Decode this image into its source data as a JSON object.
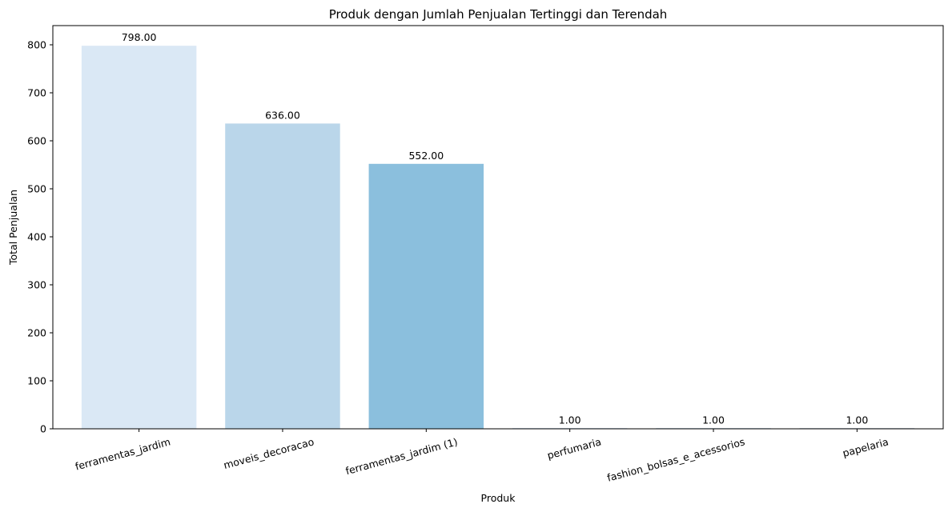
{
  "chart_data": {
    "type": "bar",
    "title": "Produk dengan Jumlah Penjualan Tertinggi dan Terendah",
    "xlabel": "Produk",
    "ylabel": "Total Penjualan",
    "categories": [
      "ferramentas_jardim",
      "moveis_decoracao",
      "ferramentas_jardim (1)",
      "perfumaria",
      "fashion_bolsas_e_acessorios",
      "papelaria"
    ],
    "values": [
      798,
      636,
      552,
      1,
      1,
      1
    ],
    "value_labels": [
      "798.00",
      "636.00",
      "552.00",
      "1.00",
      "1.00",
      "1.00"
    ],
    "bar_colors": [
      "#dae8f5",
      "#bad6ea",
      "#8bbfdd",
      "#2f7ebc",
      "#105fa8",
      "#0b3d7a"
    ],
    "ylim": [
      0,
      840
    ],
    "yticks": [
      0,
      100,
      200,
      300,
      400,
      500,
      600,
      700,
      800
    ],
    "grid": false,
    "legend": "none"
  }
}
